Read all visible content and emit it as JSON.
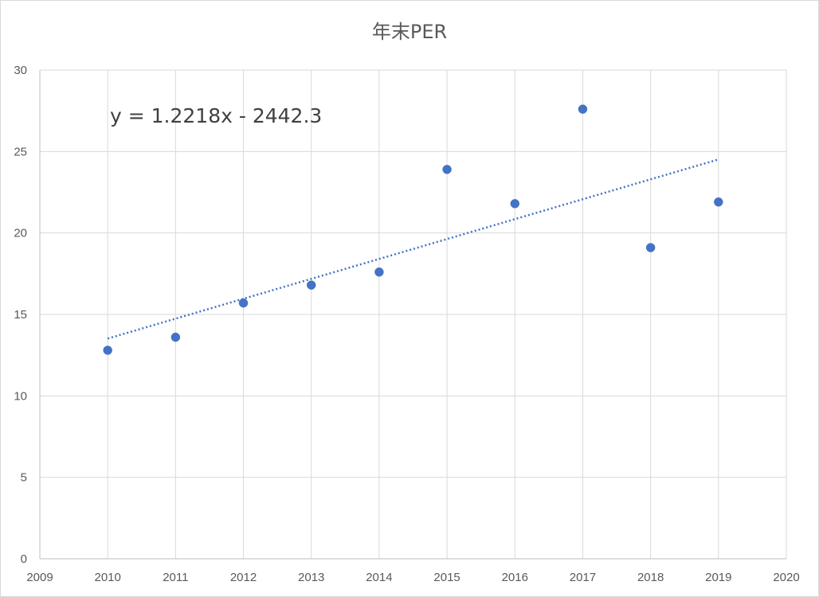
{
  "chart_data": {
    "type": "scatter",
    "title": "年末PER",
    "xlabel": "",
    "ylabel": "",
    "xlim": [
      2009,
      2020
    ],
    "ylim": [
      0,
      30
    ],
    "x_ticks": [
      2009,
      2010,
      2011,
      2012,
      2013,
      2014,
      2015,
      2016,
      2017,
      2018,
      2019,
      2020
    ],
    "y_ticks": [
      0,
      5,
      10,
      15,
      20,
      25,
      30
    ],
    "grid": true,
    "legend": "none",
    "series": [
      {
        "x": [
          2010,
          2011,
          2012,
          2013,
          2014,
          2015,
          2016,
          2017,
          2018,
          2019
        ],
        "y": [
          12.8,
          13.6,
          15.7,
          16.8,
          17.6,
          23.9,
          21.8,
          27.6,
          19.1,
          21.9
        ],
        "color": "#4472c4"
      }
    ],
    "trendline": {
      "type": "linear",
      "slope": 1.2218,
      "intercept": -2442.3,
      "x_range": [
        2010,
        2019
      ],
      "equation_label": "y = 1.2218x - 2442.3",
      "color": "#4472c4",
      "style": "dotted"
    }
  }
}
